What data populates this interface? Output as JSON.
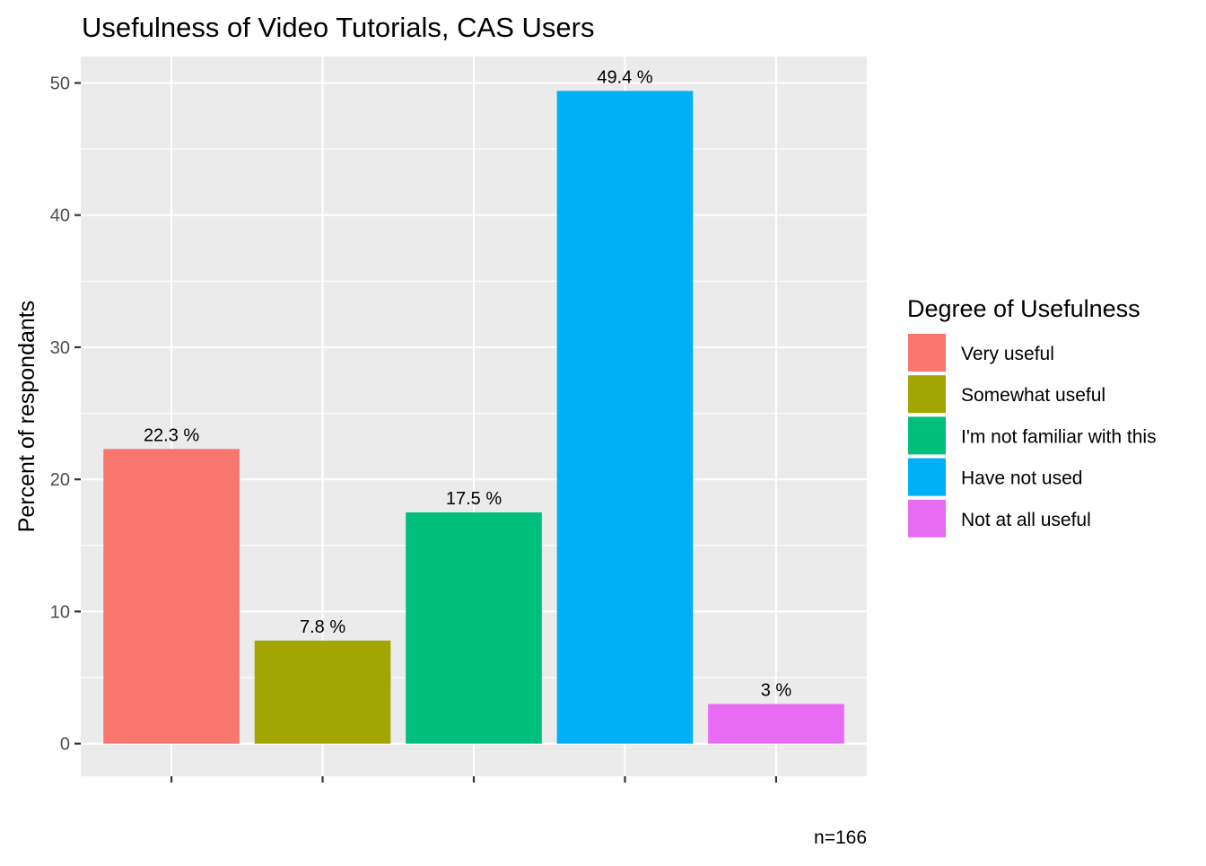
{
  "chart_data": {
    "type": "bar",
    "title": "Usefulness of Video Tutorials,  CAS Users",
    "xlabel": "",
    "ylabel": "Percent of respondants",
    "ylim": [
      -2.47,
      52.0
    ],
    "yticks": [
      0,
      10,
      20,
      30,
      40,
      50
    ],
    "grid": true,
    "categories": [
      "Very useful",
      "Somewhat useful",
      "I'm not familiar with this",
      "Have not used",
      "Not at all useful"
    ],
    "values": [
      22.3,
      7.8,
      17.5,
      49.4,
      3.0
    ],
    "data_labels": [
      "22.3 %",
      "7.8 %",
      "17.5 %",
      "49.4 %",
      "3 %"
    ],
    "colors": [
      "#F8766D",
      "#A3A500",
      "#00BF7D",
      "#00B0F6",
      "#E76BF3"
    ],
    "legend": {
      "title": "Degree of Usefulness",
      "placement": "right",
      "entries": [
        "Very useful",
        "Somewhat useful",
        "I'm not familiar with this",
        "Have not used",
        "Not at all useful"
      ]
    },
    "caption": "n=166"
  }
}
